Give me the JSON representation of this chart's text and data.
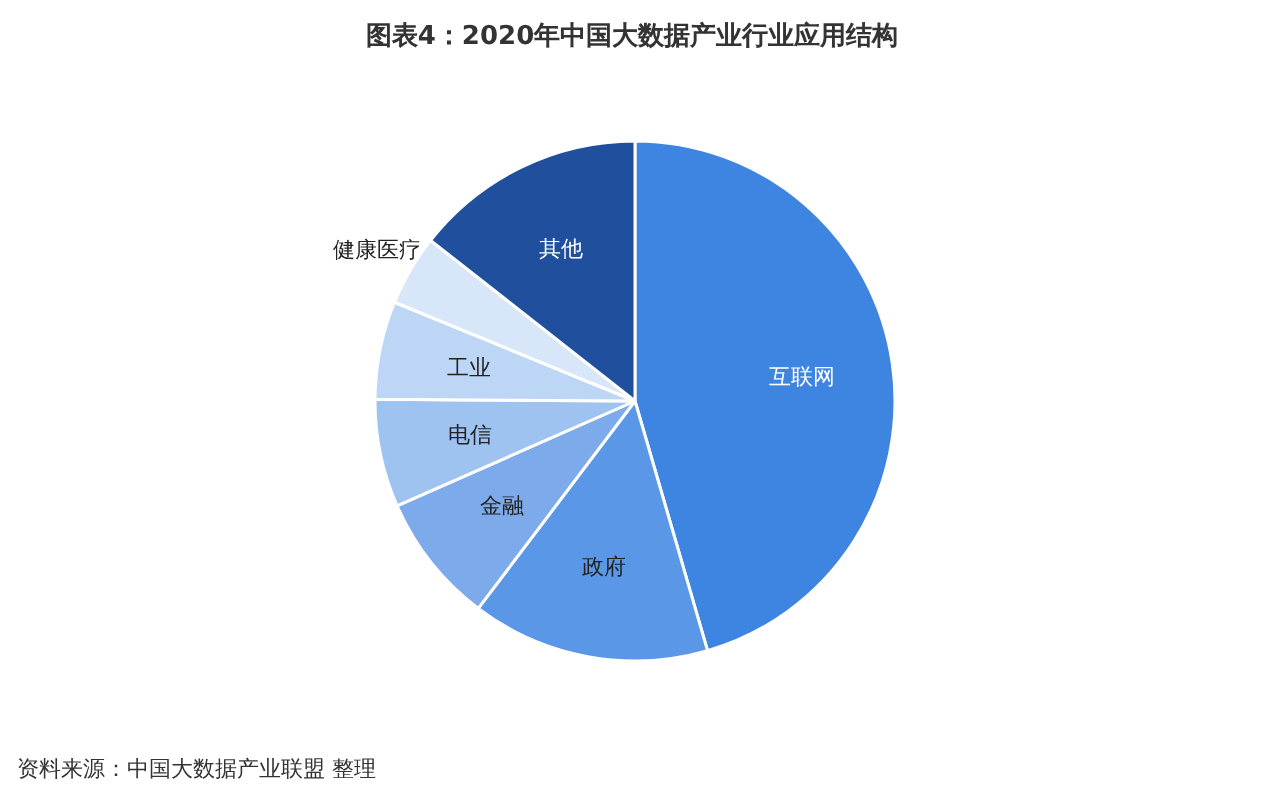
{
  "chart_data": {
    "type": "pie",
    "title": "图表4：2020年中国大数据产业行业应用结构",
    "categories": [
      "互联网",
      "政府",
      "金融",
      "电信",
      "工业",
      "健康医疗",
      "其他"
    ],
    "values": [
      45.5,
      14.8,
      8.1,
      6.7,
      6.1,
      4.4,
      14.4
    ],
    "colors": [
      "#3d85e0",
      "#5a97e6",
      "#7caaea",
      "#9ec3f0",
      "#bdd6f5",
      "#d7e7f9",
      "#1f4f9d"
    ],
    "annotations": [
      "资料来源：中国大数据产业联盟 整理"
    ]
  }
}
